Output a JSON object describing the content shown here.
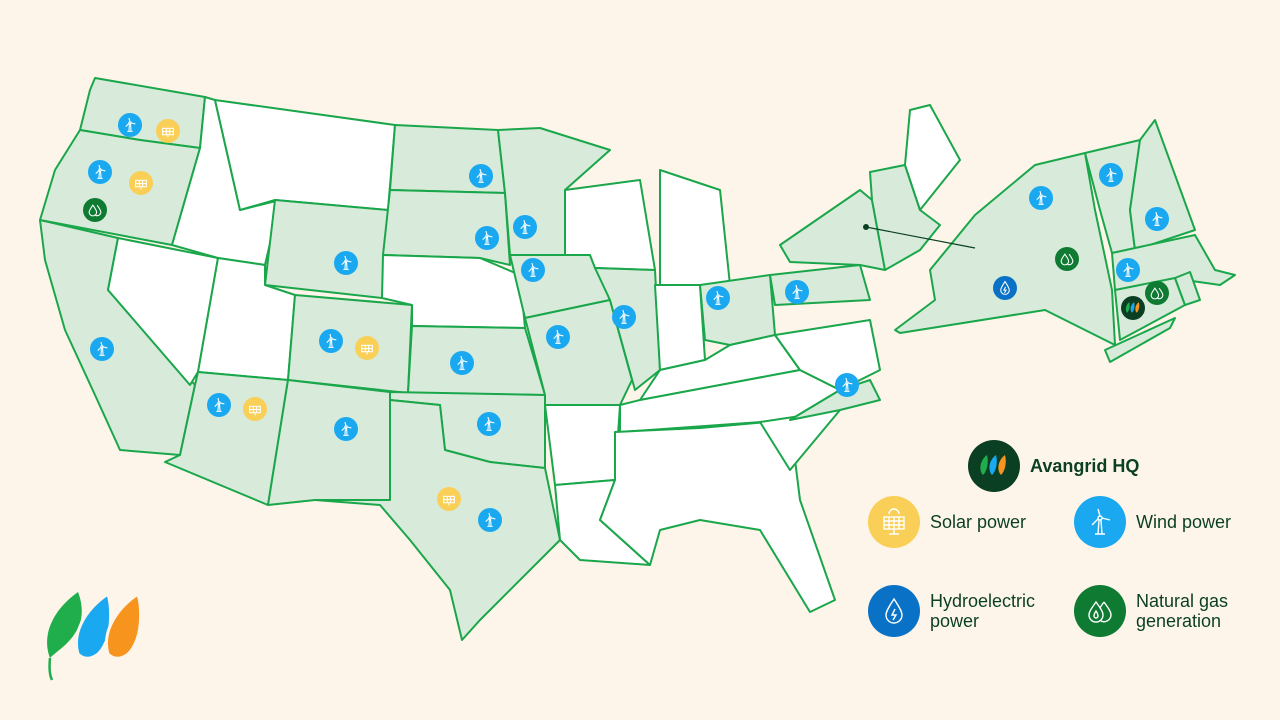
{
  "legend": {
    "hq": {
      "label": "Avangrid HQ",
      "color": "#0b3f23"
    },
    "solar": {
      "label": "Solar power",
      "color": "#f9cf57"
    },
    "wind": {
      "label": "Wind power",
      "color": "#1aa8f0"
    },
    "hydro": {
      "label": "Hydroelectric power",
      "color": "#0a72c6"
    },
    "gas": {
      "label": "Natural gas generation",
      "color": "#0e7a32"
    }
  },
  "colors": {
    "background": "#fdf5ea",
    "state_active": "#d8ebda",
    "state_inactive": "#ffffff",
    "border": "#1aa64a",
    "text": "#0b3f23"
  },
  "logo": {
    "name": "Avangrid leaves logo",
    "colors": [
      "#1fae4b",
      "#1aa8f0",
      "#f7941d"
    ]
  }
}
